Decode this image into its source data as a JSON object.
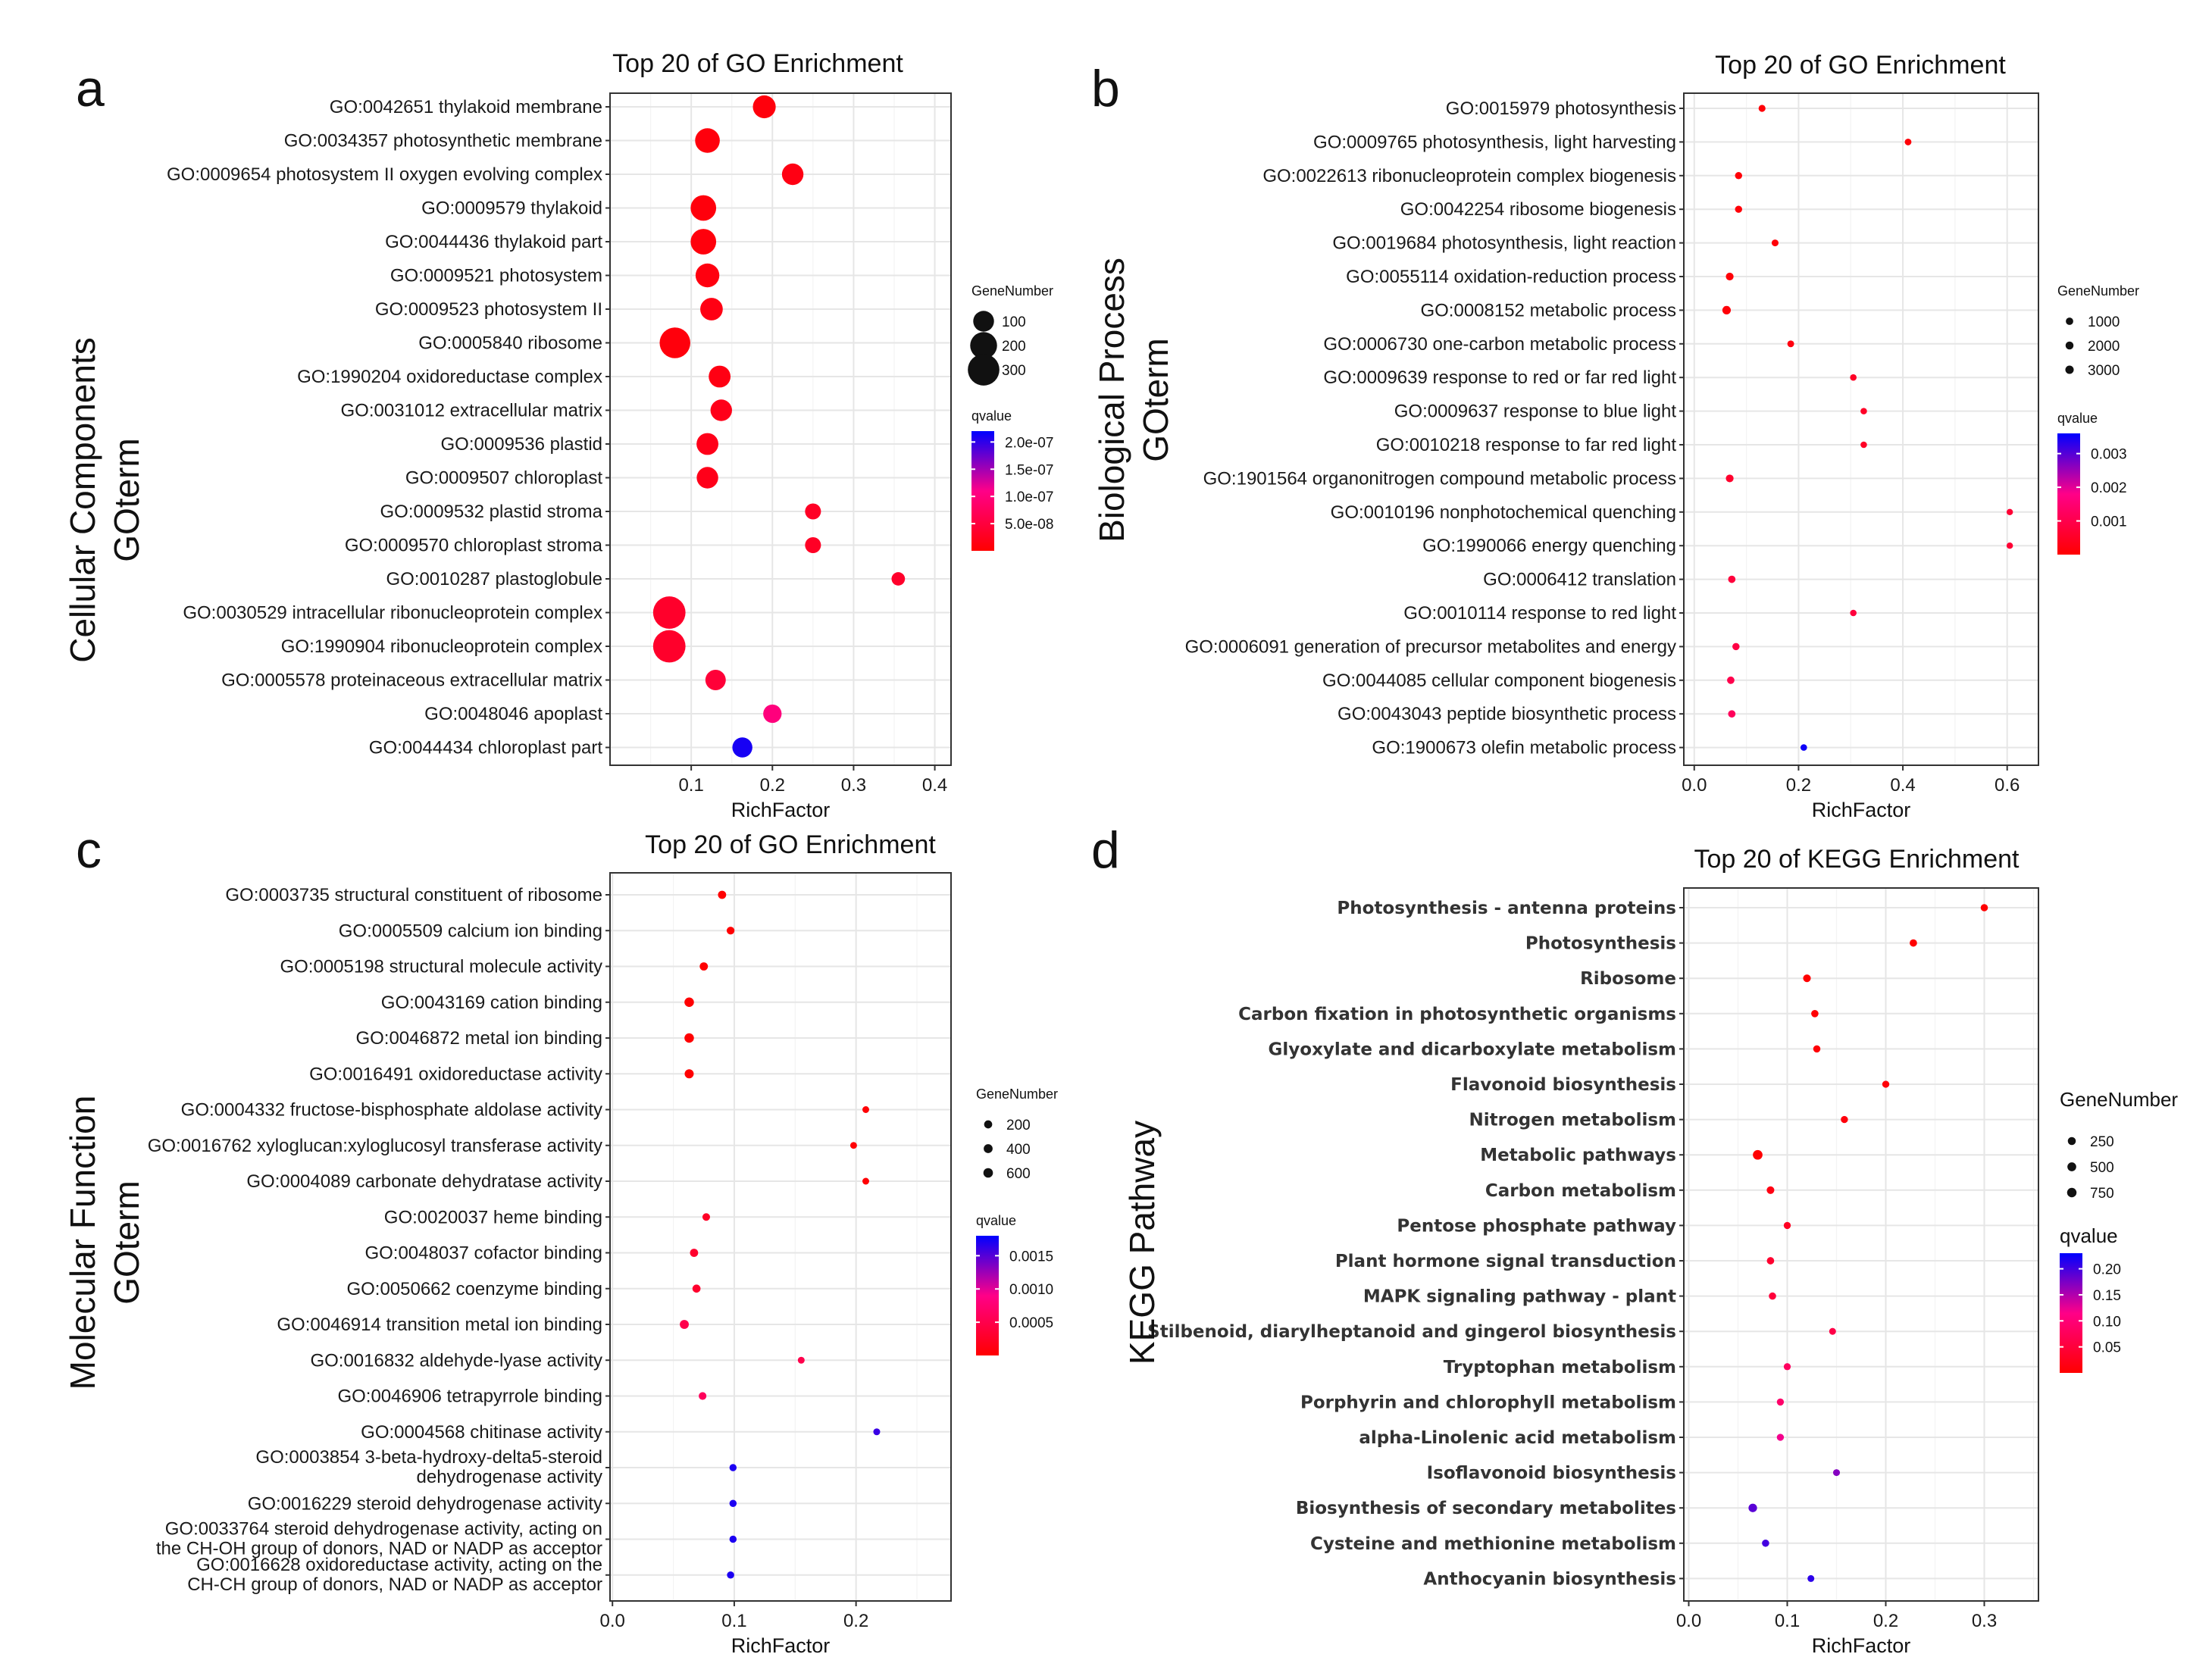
{
  "figure": {
    "panel_letters": [
      "a",
      "b",
      "c",
      "d"
    ]
  },
  "chart_data": [
    {
      "type": "scatter",
      "panel": "a",
      "title": "Top 20 of GO Enrichment",
      "xlabel": "RichFactor",
      "ylabel_lines": [
        "Cellular Components",
        "GOterm"
      ],
      "xlim": [
        0.0,
        0.42
      ],
      "xticks": [
        0.1,
        0.2,
        0.3,
        0.4
      ],
      "xtick_labels": [
        "0.1",
        "0.2",
        "0.3",
        "0.4"
      ],
      "size_legend": {
        "title": "GeneNumber",
        "values": [
          100,
          200,
          300
        ],
        "labels": [
          "100",
          "200",
          "300"
        ]
      },
      "color_legend": {
        "title": "qvalue",
        "min": 0,
        "max": 2.2e-07,
        "ticks": [
          2e-07,
          1.5e-07,
          1e-07,
          5e-08
        ],
        "tick_labels": [
          "2.0e-07",
          "1.5e-07",
          "1.0e-07",
          "5.0e-08"
        ]
      },
      "points": [
        {
          "term": [
            "GO:0042651 thylakoid membrane"
          ],
          "x": 0.19,
          "size": 130,
          "q": 1e-08
        },
        {
          "term": [
            "GO:0034357 photosynthetic membrane"
          ],
          "x": 0.12,
          "size": 160,
          "q": 1e-08
        },
        {
          "term": [
            "GO:0009654 photosystem II oxygen evolving complex"
          ],
          "x": 0.225,
          "size": 110,
          "q": 1.5e-08
        },
        {
          "term": [
            "GO:0009579 thylakoid"
          ],
          "x": 0.115,
          "size": 175,
          "q": 1e-08
        },
        {
          "term": [
            "GO:0044436 thylakoid part"
          ],
          "x": 0.115,
          "size": 175,
          "q": 1e-08
        },
        {
          "term": [
            "GO:0009521 photosystem"
          ],
          "x": 0.12,
          "size": 145,
          "q": 1.2e-08
        },
        {
          "term": [
            "GO:0009523 photosystem II"
          ],
          "x": 0.125,
          "size": 125,
          "q": 1.5e-08
        },
        {
          "term": [
            "GO:0005840 ribosome"
          ],
          "x": 0.08,
          "size": 280,
          "q": 1e-08
        },
        {
          "term": [
            "GO:1990204 oxidoreductase complex"
          ],
          "x": 0.135,
          "size": 115,
          "q": 1.5e-08
        },
        {
          "term": [
            "GO:0031012 extracellular matrix"
          ],
          "x": 0.137,
          "size": 110,
          "q": 2e-08
        },
        {
          "term": [
            "GO:0009536 plastid"
          ],
          "x": 0.12,
          "size": 115,
          "q": 2e-08
        },
        {
          "term": [
            "GO:0009507 chloroplast"
          ],
          "x": 0.12,
          "size": 110,
          "q": 2e-08
        },
        {
          "term": [
            "GO:0009532 plastid stroma"
          ],
          "x": 0.25,
          "size": 45,
          "q": 3e-08
        },
        {
          "term": [
            "GO:0009570 chloroplast stroma"
          ],
          "x": 0.25,
          "size": 45,
          "q": 3e-08
        },
        {
          "term": [
            "GO:0010287 plastoglobule"
          ],
          "x": 0.355,
          "size": 25,
          "q": 3.5e-08
        },
        {
          "term": [
            "GO:0030529 intracellular ribonucleoprotein complex"
          ],
          "x": 0.073,
          "size": 320,
          "q": 3.5e-08
        },
        {
          "term": [
            "GO:1990904 ribonucleoprotein complex"
          ],
          "x": 0.073,
          "size": 320,
          "q": 3.5e-08
        },
        {
          "term": [
            "GO:0005578 proteinaceous extracellular matrix"
          ],
          "x": 0.13,
          "size": 95,
          "q": 4.5e-08
        },
        {
          "term": [
            "GO:0048046 apoplast"
          ],
          "x": 0.2,
          "size": 70,
          "q": 1e-07
        },
        {
          "term": [
            "GO:0044434 chloroplast part"
          ],
          "x": 0.163,
          "size": 90,
          "q": 2.1e-07
        }
      ]
    },
    {
      "type": "scatter",
      "panel": "b",
      "title": "Top 20 of GO Enrichment",
      "xlabel": "RichFactor",
      "ylabel_lines": [
        "Biological Process",
        "GOterm"
      ],
      "xlim": [
        -0.02,
        0.66
      ],
      "xticks": [
        0.0,
        0.2,
        0.4,
        0.6
      ],
      "xtick_labels": [
        "0.0",
        "0.2",
        "0.4",
        "0.6"
      ],
      "size_legend": {
        "title": "GeneNumber",
        "values": [
          1000,
          2000,
          3000
        ],
        "labels": [
          "1000",
          "2000",
          "3000"
        ]
      },
      "color_legend": {
        "title": "qvalue",
        "min": 0,
        "max": 0.0036,
        "ticks": [
          0.003,
          0.002,
          0.001
        ],
        "tick_labels": [
          "0.003",
          "0.002",
          "0.001"
        ]
      },
      "points": [
        {
          "term": [
            "GO:0015979 photosynthesis"
          ],
          "x": 0.13,
          "size": 420,
          "q": 0.0001
        },
        {
          "term": [
            "GO:0009765 photosynthesis, light harvesting"
          ],
          "x": 0.41,
          "size": 250,
          "q": 0.0001
        },
        {
          "term": [
            "GO:0022613 ribonucleoprotein complex biogenesis"
          ],
          "x": 0.085,
          "size": 700,
          "q": 0.0001
        },
        {
          "term": [
            "GO:0042254 ribosome biogenesis"
          ],
          "x": 0.085,
          "size": 680,
          "q": 0.0001
        },
        {
          "term": [
            "GO:0019684 photosynthesis, light reaction"
          ],
          "x": 0.155,
          "size": 320,
          "q": 0.0001
        },
        {
          "term": [
            "GO:0055114 oxidation-reduction process"
          ],
          "x": 0.068,
          "size": 1500,
          "q": 0.0001
        },
        {
          "term": [
            "GO:0008152 metabolic process"
          ],
          "x": 0.062,
          "size": 3200,
          "q": 0.0001
        },
        {
          "term": [
            "GO:0006730 one-carbon metabolic process"
          ],
          "x": 0.185,
          "size": 260,
          "q": 0.0002
        },
        {
          "term": [
            "GO:0009639 response to red or far red light"
          ],
          "x": 0.305,
          "size": 130,
          "q": 0.0005
        },
        {
          "term": [
            "GO:0009637 response to blue light"
          ],
          "x": 0.325,
          "size": 100,
          "q": 0.0005
        },
        {
          "term": [
            "GO:0010218 response to far red light"
          ],
          "x": 0.325,
          "size": 100,
          "q": 0.0005
        },
        {
          "term": [
            "GO:1901564 organonitrogen compound metabolic process"
          ],
          "x": 0.068,
          "size": 1500,
          "q": 0.0006
        },
        {
          "term": [
            "GO:0010196 nonphotochemical quenching"
          ],
          "x": 0.605,
          "size": 60,
          "q": 0.0007
        },
        {
          "term": [
            "GO:1990066 energy quenching"
          ],
          "x": 0.605,
          "size": 60,
          "q": 0.0007
        },
        {
          "term": [
            "GO:0006412 translation"
          ],
          "x": 0.072,
          "size": 900,
          "q": 0.0008
        },
        {
          "term": [
            "GO:0010114 response to red light"
          ],
          "x": 0.305,
          "size": 120,
          "q": 0.0008
        },
        {
          "term": [
            "GO:0006091 generation of precursor metabolites and energy"
          ],
          "x": 0.08,
          "size": 700,
          "q": 0.0009
        },
        {
          "term": [
            "GO:0044085 cellular component biogenesis"
          ],
          "x": 0.07,
          "size": 1000,
          "q": 0.001
        },
        {
          "term": [
            "GO:0043043 peptide biosynthetic process"
          ],
          "x": 0.072,
          "size": 950,
          "q": 0.0012
        },
        {
          "term": [
            "GO:1900673 olefin metabolic process"
          ],
          "x": 0.21,
          "size": 120,
          "q": 0.0035
        }
      ]
    },
    {
      "type": "scatter",
      "panel": "c",
      "title": "Top 20 of GO Enrichment",
      "xlabel": "RichFactor",
      "ylabel_lines": [
        "Molecular Function",
        "GOterm"
      ],
      "xlim": [
        -0.002,
        0.278
      ],
      "xticks": [
        0.0,
        0.1,
        0.2
      ],
      "xtick_labels": [
        "0.0",
        "0.1",
        "0.2"
      ],
      "size_legend": {
        "title": "GeneNumber",
        "values": [
          200,
          400,
          600
        ],
        "labels": [
          "200",
          "400",
          "600"
        ]
      },
      "color_legend": {
        "title": "qvalue",
        "min": 0,
        "max": 0.0018,
        "ticks": [
          0.0015,
          0.001,
          0.0005
        ],
        "tick_labels": [
          "0.0015",
          "0.0010",
          "0.0005"
        ]
      },
      "points": [
        {
          "term": [
            "GO:0003735 structural constituent of ribosome"
          ],
          "x": 0.09,
          "size": 220,
          "q": 1e-05
        },
        {
          "term": [
            "GO:0005509 calcium ion binding"
          ],
          "x": 0.097,
          "size": 150,
          "q": 1e-05
        },
        {
          "term": [
            "GO:0005198 structural molecule activity"
          ],
          "x": 0.075,
          "size": 230,
          "q": 1e-05
        },
        {
          "term": [
            "GO:0043169 cation binding"
          ],
          "x": 0.063,
          "size": 580,
          "q": 1e-05
        },
        {
          "term": [
            "GO:0046872 metal ion binding"
          ],
          "x": 0.063,
          "size": 570,
          "q": 1e-05
        },
        {
          "term": [
            "GO:0016491 oxidoreductase activity"
          ],
          "x": 0.063,
          "size": 440,
          "q": 1e-05
        },
        {
          "term": [
            "GO:0004332 fructose-bisphosphate aldolase activity"
          ],
          "x": 0.208,
          "size": 25,
          "q": 3e-05
        },
        {
          "term": [
            "GO:0016762 xyloglucan:xyloglucosyl transferase activity"
          ],
          "x": 0.198,
          "size": 25,
          "q": 3e-05
        },
        {
          "term": [
            "GO:0004089 carbonate dehydratase activity"
          ],
          "x": 0.208,
          "size": 25,
          "q": 3e-05
        },
        {
          "term": [
            "GO:0020037 heme binding"
          ],
          "x": 0.077,
          "size": 120,
          "q": 0.00025
        },
        {
          "term": [
            "GO:0048037 cofactor binding"
          ],
          "x": 0.067,
          "size": 220,
          "q": 0.0003
        },
        {
          "term": [
            "GO:0050662 coenzyme binding"
          ],
          "x": 0.069,
          "size": 200,
          "q": 0.0003
        },
        {
          "term": [
            "GO:0046914 transition metal ion binding"
          ],
          "x": 0.059,
          "size": 420,
          "q": 0.0005
        },
        {
          "term": [
            "GO:0016832 aldehyde-lyase activity"
          ],
          "x": 0.155,
          "size": 30,
          "q": 0.0005
        },
        {
          "term": [
            "GO:0046906 tetrapyrrole binding"
          ],
          "x": 0.074,
          "size": 130,
          "q": 0.0006
        },
        {
          "term": [
            "GO:0004568 chitinase activity"
          ],
          "x": 0.217,
          "size": 30,
          "q": 0.0016
        },
        {
          "term": [
            "GO:0003854 3-beta-hydroxy-delta5-steroid",
            "dehydrogenase activity"
          ],
          "x": 0.099,
          "size": 60,
          "q": 0.0017
        },
        {
          "term": [
            "GO:0016229 steroid dehydrogenase activity"
          ],
          "x": 0.099,
          "size": 60,
          "q": 0.0017
        },
        {
          "term": [
            "GO:0033764 steroid dehydrogenase activity, acting on",
            "the CH-OH group of donors, NAD or NADP as acceptor"
          ],
          "x": 0.099,
          "size": 60,
          "q": 0.0017
        },
        {
          "term": [
            "GO:0016628 oxidoreductase activity, acting on the",
            "CH-CH group of donors, NAD or NADP as acceptor"
          ],
          "x": 0.097,
          "size": 70,
          "q": 0.0017
        }
      ]
    },
    {
      "type": "scatter",
      "panel": "d",
      "title": "Top 20 of KEGG Enrichment",
      "xlabel": "RichFactor",
      "ylabel_lines": [
        "KEGG  Pathway"
      ],
      "xlim": [
        -0.005,
        0.355
      ],
      "xticks": [
        0.0,
        0.1,
        0.2,
        0.3
      ],
      "xtick_labels": [
        "0.0",
        "0.1",
        "0.2",
        "0.3"
      ],
      "size_legend": {
        "title": "GeneNumber",
        "values": [
          250,
          500,
          750
        ],
        "labels": [
          "250",
          "500",
          "750"
        ]
      },
      "color_legend": {
        "title": "qvalue",
        "min": 0,
        "max": 0.23,
        "ticks": [
          0.2,
          0.15,
          0.1,
          0.05
        ],
        "tick_labels": [
          "0.20",
          "0.15",
          "0.10",
          "0.05"
        ]
      },
      "points": [
        {
          "term": [
            "Photosynthesis - antenna proteins"
          ],
          "x": 0.3,
          "size": 90,
          "q": 0.001
        },
        {
          "term": [
            "Photosynthesis"
          ],
          "x": 0.228,
          "size": 110,
          "q": 0.001
        },
        {
          "term": [
            "Ribosome"
          ],
          "x": 0.12,
          "size": 170,
          "q": 0.001
        },
        {
          "term": [
            "Carbon fixation in photosynthetic organisms"
          ],
          "x": 0.128,
          "size": 100,
          "q": 0.003
        },
        {
          "term": [
            "Glyoxylate and dicarboxylate metabolism"
          ],
          "x": 0.13,
          "size": 90,
          "q": 0.005
        },
        {
          "term": [
            "Flavonoid biosynthesis"
          ],
          "x": 0.2,
          "size": 70,
          "q": 0.008
        },
        {
          "term": [
            "Nitrogen metabolism"
          ],
          "x": 0.158,
          "size": 70,
          "q": 0.01
        },
        {
          "term": [
            "Metabolic pathways"
          ],
          "x": 0.07,
          "size": 830,
          "q": 0.002
        },
        {
          "term": [
            "Carbon metabolism"
          ],
          "x": 0.083,
          "size": 160,
          "q": 0.015
        },
        {
          "term": [
            "Pentose phosphate pathway"
          ],
          "x": 0.1,
          "size": 70,
          "q": 0.03
        },
        {
          "term": [
            "Plant hormone signal transduction"
          ],
          "x": 0.083,
          "size": 110,
          "q": 0.04
        },
        {
          "term": [
            "MAPK signaling pathway - plant"
          ],
          "x": 0.085,
          "size": 95,
          "q": 0.05
        },
        {
          "term": [
            "Stilbenoid, diarylheptanoid and gingerol biosynthesis"
          ],
          "x": 0.146,
          "size": 40,
          "q": 0.06
        },
        {
          "term": [
            "Tryptophan metabolism"
          ],
          "x": 0.1,
          "size": 60,
          "q": 0.08
        },
        {
          "term": [
            "Porphyrin and chlorophyll metabolism"
          ],
          "x": 0.093,
          "size": 70,
          "q": 0.09
        },
        {
          "term": [
            "alpha-Linolenic acid metabolism"
          ],
          "x": 0.093,
          "size": 70,
          "q": 0.12
        },
        {
          "term": [
            "Isoflavonoid biosynthesis"
          ],
          "x": 0.15,
          "size": 40,
          "q": 0.17
        },
        {
          "term": [
            "Biosynthesis of secondary metabolites"
          ],
          "x": 0.065,
          "size": 400,
          "q": 0.19
        },
        {
          "term": [
            "Cysteine and methionine metabolism"
          ],
          "x": 0.078,
          "size": 90,
          "q": 0.2
        },
        {
          "term": [
            "Anthocyanin biosynthesis"
          ],
          "x": 0.124,
          "size": 40,
          "q": 0.21
        }
      ]
    }
  ]
}
